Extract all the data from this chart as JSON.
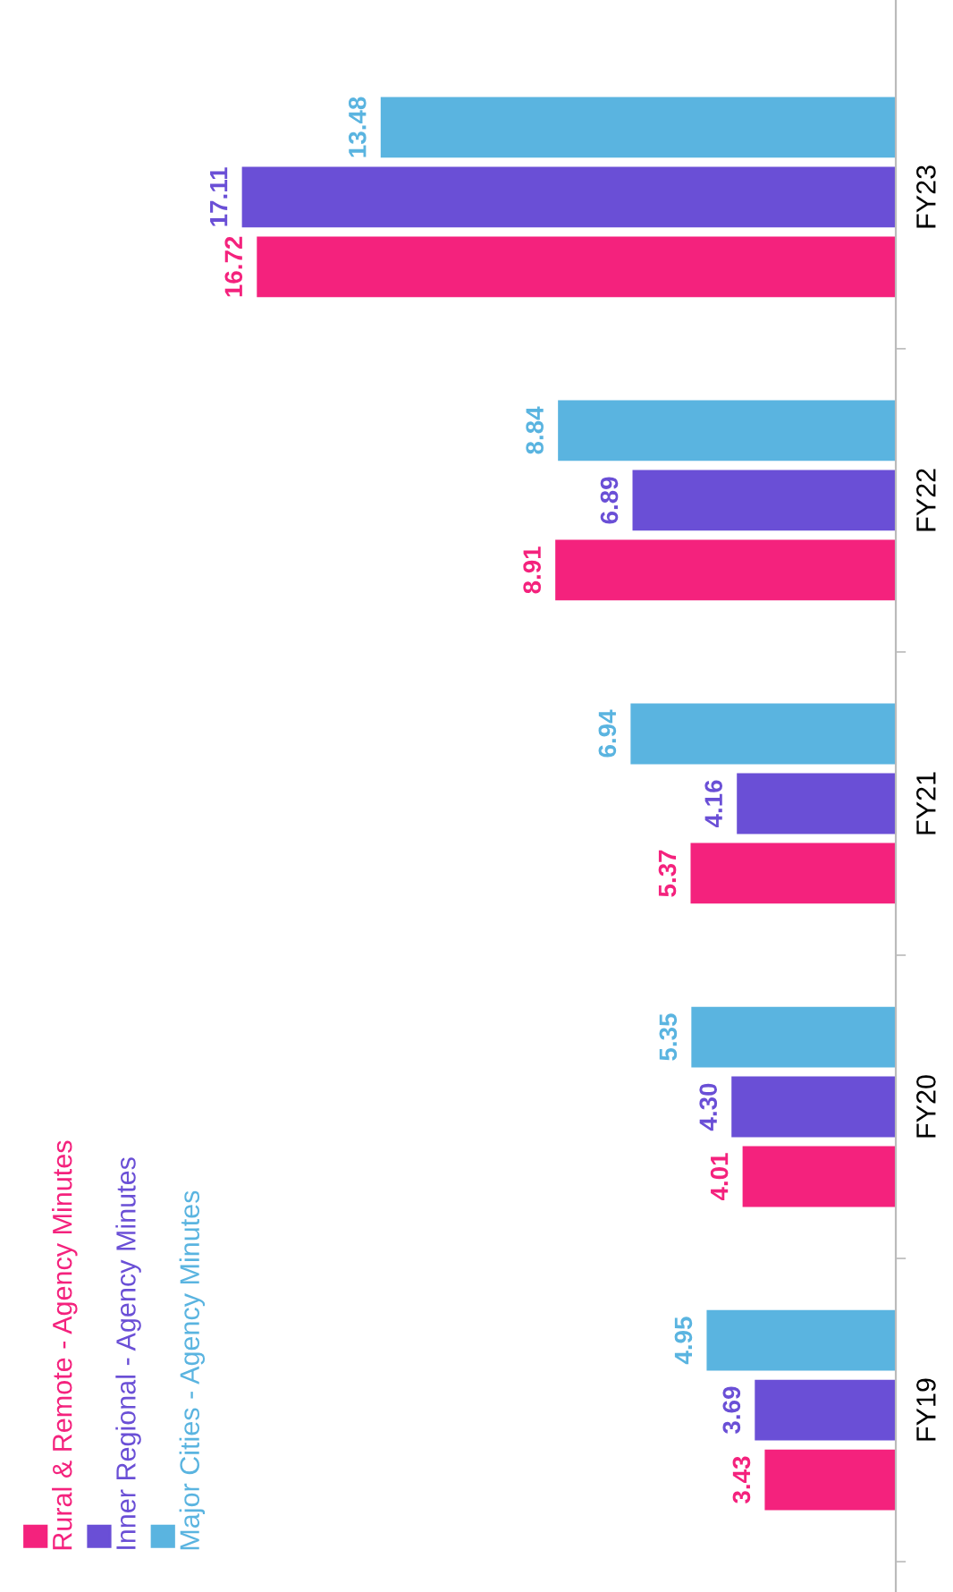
{
  "chart_data": {
    "type": "bar",
    "orientation": "horizontal",
    "categories": [
      "FY23",
      "FY22",
      "FY21",
      "FY20",
      "FY19"
    ],
    "series": [
      {
        "name": "Rural & Remote - Agency Minutes",
        "color": "#f4227d",
        "values": [
          16.72,
          8.91,
          5.37,
          4.01,
          3.43
        ],
        "value_labels": [
          "16.72",
          "8.91",
          "5.37",
          "4.01",
          "3.43"
        ]
      },
      {
        "name": "Inner Regional - Agency Minutes",
        "color": "#6a4fd6",
        "values": [
          17.11,
          6.89,
          4.16,
          4.3,
          3.69
        ],
        "value_labels": [
          "17.11",
          "6.89",
          "4.16",
          "4.30",
          "3.69"
        ]
      },
      {
        "name": "Major Cities - Agency Minutes",
        "color": "#5ab4e0",
        "values": [
          13.48,
          8.84,
          6.94,
          5.35,
          4.95
        ],
        "value_labels": [
          "13.48",
          "8.84",
          "6.94",
          "5.35",
          "4.95"
        ]
      }
    ],
    "legend": "bottom left",
    "tick_labels": "y",
    "grid": false
  }
}
